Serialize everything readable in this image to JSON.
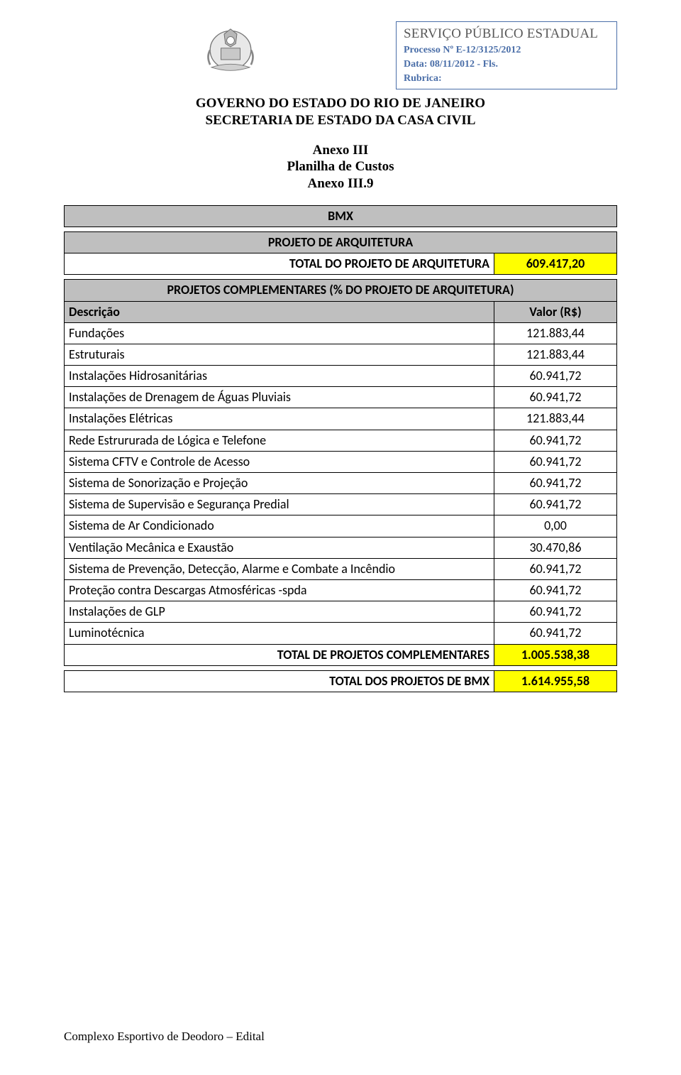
{
  "box": {
    "l1": "SERVIÇO PÚBLICO ESTADUAL",
    "l2": "Processo Nº E-12/3125/2012",
    "l3": "Data: 08/11/2012 - Fls.",
    "l4": "Rubrica:"
  },
  "title": {
    "l1": "GOVERNO DO ESTADO DO RIO DE JANEIRO",
    "l2": "SECRETARIA DE ESTADO DA CASA CIVIL"
  },
  "subtitle": {
    "l1": "Anexo III",
    "l2": "Planilha de Custos",
    "l3": "Anexo III.9"
  },
  "table": {
    "category": "BMX",
    "section1": "PROJETO DE ARQUITETURA",
    "section1_total_label": "TOTAL DO PROJETO DE ARQUITETURA",
    "section1_total_value": "609.417,20",
    "section2": "PROJETOS COMPLEMENTARES (% DO PROJETO DE ARQUITETURA)",
    "col_desc": "Descrição",
    "col_val": "Valor (R$)",
    "rows": [
      {
        "d": "Fundações",
        "v": "121.883,44"
      },
      {
        "d": "Estruturais",
        "v": "121.883,44"
      },
      {
        "d": "Instalações Hidrosanitárias",
        "v": "60.941,72"
      },
      {
        "d": "Instalações de Drenagem de Águas Pluviais",
        "v": "60.941,72"
      },
      {
        "d": "Instalações Elétricas",
        "v": "121.883,44"
      },
      {
        "d": "Rede Estrururada de Lógica e Telefone",
        "v": "60.941,72"
      },
      {
        "d": "Sistema CFTV e Controle de Acesso",
        "v": "60.941,72"
      },
      {
        "d": "Sistema de Sonorização e Projeção",
        "v": "60.941,72"
      },
      {
        "d": "Sistema de Supervisão e Segurança Predial",
        "v": "60.941,72"
      },
      {
        "d": "Sistema de Ar Condicionado",
        "v": "0,00"
      },
      {
        "d": "Ventilação Mecânica e Exaustão",
        "v": "30.470,86"
      },
      {
        "d": "Sistema de Prevenção, Detecção, Alarme e Combate a Incêndio",
        "v": "60.941,72"
      },
      {
        "d": "Proteção contra Descargas Atmosféricas -spda",
        "v": "60.941,72"
      },
      {
        "d": "Instalações de GLP",
        "v": "60.941,72"
      },
      {
        "d": "Luminotécnica",
        "v": "60.941,72"
      }
    ],
    "section2_total_label": "TOTAL DE PROJETOS COMPLEMENTARES",
    "section2_total_value": "1.005.538,38",
    "grand_total_label": "TOTAL DOS PROJETOS DE BMX",
    "grand_total_value": "1.614.955,58"
  },
  "footer": "Complexo Esportivo de Deodoro – Edital"
}
